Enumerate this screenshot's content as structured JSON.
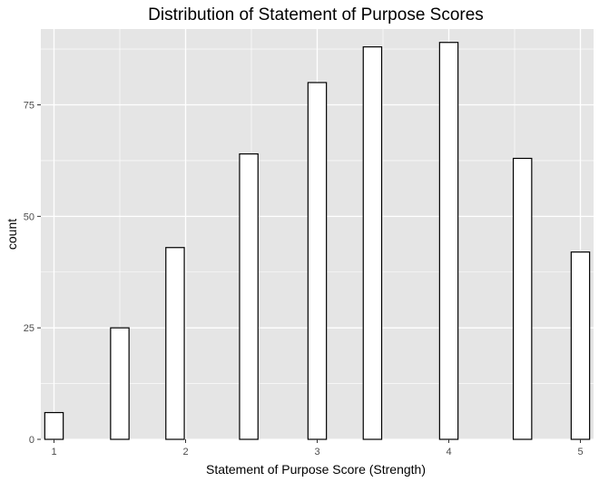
{
  "chart_data": {
    "type": "bar",
    "title": "Distribution of Statement of Purpose Scores",
    "xlabel": "Statement of Purpose Score (Strength)",
    "ylabel": "count",
    "xlim": [
      0.9,
      5.1
    ],
    "ylim": [
      0,
      92
    ],
    "x_ticks": [
      1,
      2,
      3,
      4,
      5
    ],
    "y_ticks": [
      0,
      25,
      50,
      75
    ],
    "bin_width": 0.14,
    "bins": [
      {
        "x": 1.0,
        "count": 6
      },
      {
        "x": 1.14,
        "count": 0
      },
      {
        "x": 1.28,
        "count": 0
      },
      {
        "x": 1.42,
        "count": 0
      },
      {
        "x": 1.5,
        "count": 25
      },
      {
        "x": 1.64,
        "count": 0
      },
      {
        "x": 1.78,
        "count": 0
      },
      {
        "x": 1.92,
        "count": 43
      },
      {
        "x": 2.06,
        "count": 0
      },
      {
        "x": 2.2,
        "count": 0
      },
      {
        "x": 2.34,
        "count": 0
      },
      {
        "x": 2.48,
        "count": 64
      },
      {
        "x": 2.62,
        "count": 0
      },
      {
        "x": 2.76,
        "count": 0
      },
      {
        "x": 2.9,
        "count": 0
      },
      {
        "x": 3.0,
        "count": 80
      },
      {
        "x": 3.14,
        "count": 0
      },
      {
        "x": 3.28,
        "count": 0
      },
      {
        "x": 3.42,
        "count": 88
      },
      {
        "x": 3.56,
        "count": 0
      },
      {
        "x": 3.7,
        "count": 0
      },
      {
        "x": 3.84,
        "count": 0
      },
      {
        "x": 4.0,
        "count": 89
      },
      {
        "x": 4.14,
        "count": 0
      },
      {
        "x": 4.28,
        "count": 0
      },
      {
        "x": 4.42,
        "count": 0
      },
      {
        "x": 4.56,
        "count": 63
      },
      {
        "x": 4.7,
        "count": 0
      },
      {
        "x": 4.84,
        "count": 0
      },
      {
        "x": 5.0,
        "count": 42
      }
    ],
    "grid": true,
    "legend": "none",
    "colors": {
      "panel": "#e5e5e5",
      "grid_major": "#ffffff",
      "bar_fill": "#ffffff",
      "bar_outline": "#000000"
    }
  }
}
